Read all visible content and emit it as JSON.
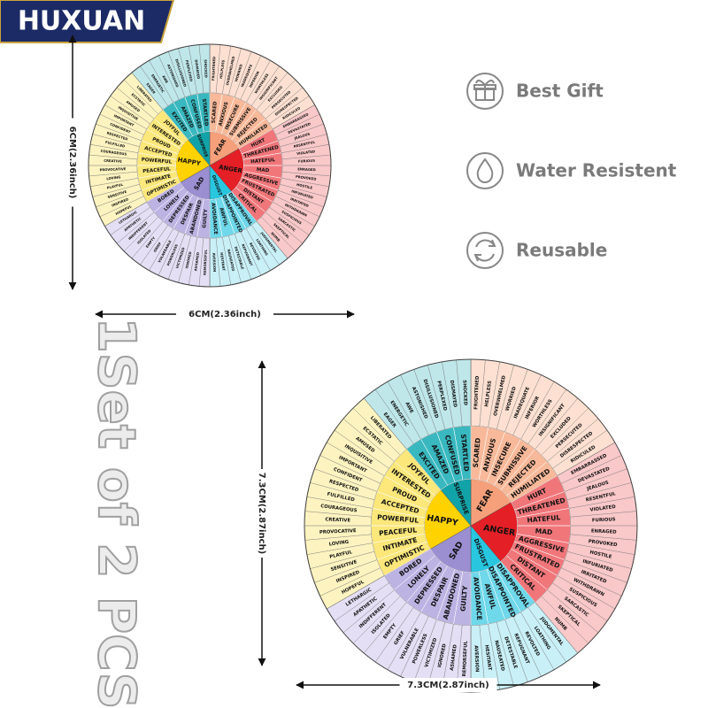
{
  "brand": "HUXUAN",
  "features": [
    {
      "label": "Best Gift"
    },
    {
      "label": "Water Resistent"
    },
    {
      "label": "Reusable"
    }
  ],
  "side_text": "1Set of 2 PCS",
  "wheels": [
    {
      "height_label": "6CM(2.36inch)",
      "width_label": "6CM(2.36inch)"
    },
    {
      "height_label": "7.3CM(2.87inch)",
      "width_label": "7.3CM(2.87inch)"
    }
  ],
  "wheel": {
    "emotions": [
      {
        "name": "FEAR",
        "colors": [
          "#f5a07a",
          "#f8b99a",
          "#fde0d1"
        ],
        "middle": [
          "SCARED",
          "ANXIOUS",
          "INSECURE",
          "SUBMISSIVE",
          "REJECTED",
          "HUMILIATED"
        ],
        "outer": [
          "FRIGHTENED",
          "HELPLESS",
          "OVERWHELMED",
          "WORRIED",
          "INADEQUATE",
          "INFERIOR",
          "WORTHLESS",
          "INSIGNIFICANT",
          "EXCLUDED",
          "PERSECUTED",
          "DISRESPECTED",
          "RIDICULED"
        ]
      },
      {
        "name": "ANGER",
        "colors": [
          "#e41f26",
          "#f0767a",
          "#f9c8c9"
        ],
        "middle": [
          "HURT",
          "THREATENED",
          "HATEFUL",
          "MAD",
          "AGGRESSIVE",
          "FRUSTRATED",
          "DISTANT",
          "CRITICAL"
        ],
        "outer": [
          "EMBARRASSED",
          "DEVASTATED",
          "JEALOUS",
          "RESENTFUL",
          "VIOLATED",
          "FURIOUS",
          "ENRAGED",
          "PROVOKED",
          "HOSTILE",
          "INFURIATED",
          "IRRITATED",
          "WITHDRAWN",
          "SUSPICIOUS",
          "SARCASTIC",
          "SKEPTICAL",
          "NUMB"
        ]
      },
      {
        "name": "DISGUST",
        "colors": [
          "#29c6e0",
          "#6fd8ea",
          "#c9f0f7"
        ],
        "middle": [
          "DISAPPROVAL",
          "DISAPPOINTED",
          "AWFUL",
          "AVOIDANCE"
        ],
        "outer": [
          "JUDGMENTAL",
          "LOATHING",
          "REVOLTED",
          "REPUGNANT",
          "DETESTABLE",
          "NAUSEATED",
          "HESITANT",
          "AVERSION"
        ]
      },
      {
        "name": "SAD",
        "colors": [
          "#9b8fd1",
          "#bdb3e3",
          "#e4dff4"
        ],
        "middle": [
          "GUILTY",
          "ABANDONED",
          "DESPAIR",
          "DEPRESSED",
          "LONELY",
          "BORED"
        ],
        "outer": [
          "REMORSEFUL",
          "ASHAMED",
          "IGNORED",
          "VICTIMIZED",
          "POWERLESS",
          "VULNERABLE",
          "GRIEF",
          "EMPTY",
          "ISOLATED",
          "INDIFFERENT",
          "APATHETIC",
          "LETHARGIC"
        ]
      },
      {
        "name": "HAPPY",
        "colors": [
          "#ffd200",
          "#fbe77a",
          "#fdf3c0"
        ],
        "middle": [
          "OPTIMISTIC",
          "INTIMATE",
          "PEACEFUL",
          "POWERFUL",
          "ACCEPTED",
          "PROUD",
          "INTERESTED",
          "JOYFUL"
        ],
        "outer": [
          "HOPEFUL",
          "INSPIRED",
          "SENSITIVE",
          "PLAYFUL",
          "LOVING",
          "PROVOCATIVE",
          "CREATIVE",
          "COURAGEOUS",
          "FULFILLED",
          "RESPECTED",
          "CONFIDENT",
          "IMPORTANT",
          "INQUISITIVE",
          "AMUSED",
          "ECSTATIC",
          "LIBERATED"
        ]
      },
      {
        "name": "SURPRISE",
        "colors": [
          "#12a3a8",
          "#39b8bf",
          "#bfe7ea"
        ],
        "middle": [
          "EXCITED",
          "AMAZED",
          "CONFUSED",
          "STARTLED"
        ],
        "outer": [
          "EAGER",
          "ENERGETIC",
          "AWE",
          "ASTONISHED",
          "DISILLUSIONED",
          "PERPLEXED",
          "DISMAYED",
          "SHOCKED"
        ]
      }
    ]
  }
}
